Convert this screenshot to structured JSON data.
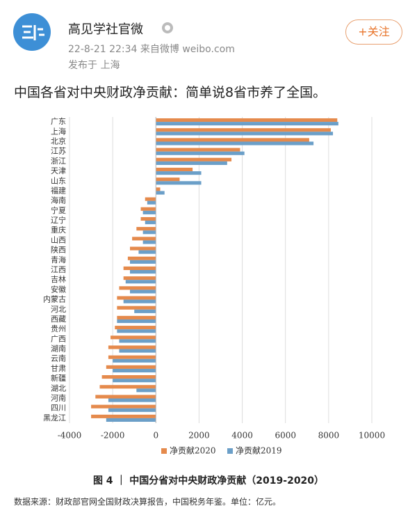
{
  "header": {
    "name": "高见学社官微",
    "time": "22-8-21 22:34  来自微博 weibo.com",
    "location": "发布于 上海",
    "follow": "+关注"
  },
  "post": {
    "text": "中国各省对中央财政净贡献：简单说8省市养了全国。"
  },
  "chart_data": {
    "type": "barh",
    "categories": [
      "广东",
      "上海",
      "北京",
      "江苏",
      "浙江",
      "天津",
      "山东",
      "福建",
      "海南",
      "宁夏",
      "辽宁",
      "重庆",
      "山西",
      "陕西",
      "青海",
      "江西",
      "吉林",
      "安徽",
      "内蒙古",
      "河北",
      "西藏",
      "贵州",
      "广西",
      "湖南",
      "云南",
      "甘肃",
      "新疆",
      "湖北",
      "河南",
      "四川",
      "黑龙江"
    ],
    "series": [
      {
        "name": "净贡献2020",
        "color": "#e58a4c",
        "values": [
          8400,
          8100,
          7100,
          3900,
          3500,
          1700,
          1100,
          200,
          -500,
          -700,
          -700,
          -900,
          -1100,
          -1200,
          -1300,
          -1500,
          -1500,
          -1700,
          -1800,
          -1800,
          -1800,
          -1900,
          -2100,
          -2200,
          -2200,
          -2300,
          -2500,
          -2600,
          -2800,
          -3000,
          -3000
        ]
      },
      {
        "name": "净贡献2019",
        "color": "#6b9fc8",
        "values": [
          8450,
          8200,
          7300,
          4100,
          3300,
          2100,
          2100,
          400,
          -400,
          -600,
          -500,
          -600,
          -600,
          -800,
          -1200,
          -1200,
          -1400,
          -1200,
          -1500,
          -1000,
          -1800,
          -1800,
          -1700,
          -1700,
          -2000,
          -2000,
          -2000,
          -900,
          -2200,
          -2200,
          -2300
        ]
      }
    ],
    "xlim": [
      -4000,
      10000
    ],
    "xticks": [
      -4000,
      -2000,
      0,
      2000,
      4000,
      6000,
      8000,
      10000
    ],
    "grid": true
  },
  "caption": "图 4 ｜ 中国分省对中央财政净贡献（2019-2020）",
  "source": "数据来源：财政部官网全国财政决算报告，中国税务年鉴。单位：亿元。"
}
